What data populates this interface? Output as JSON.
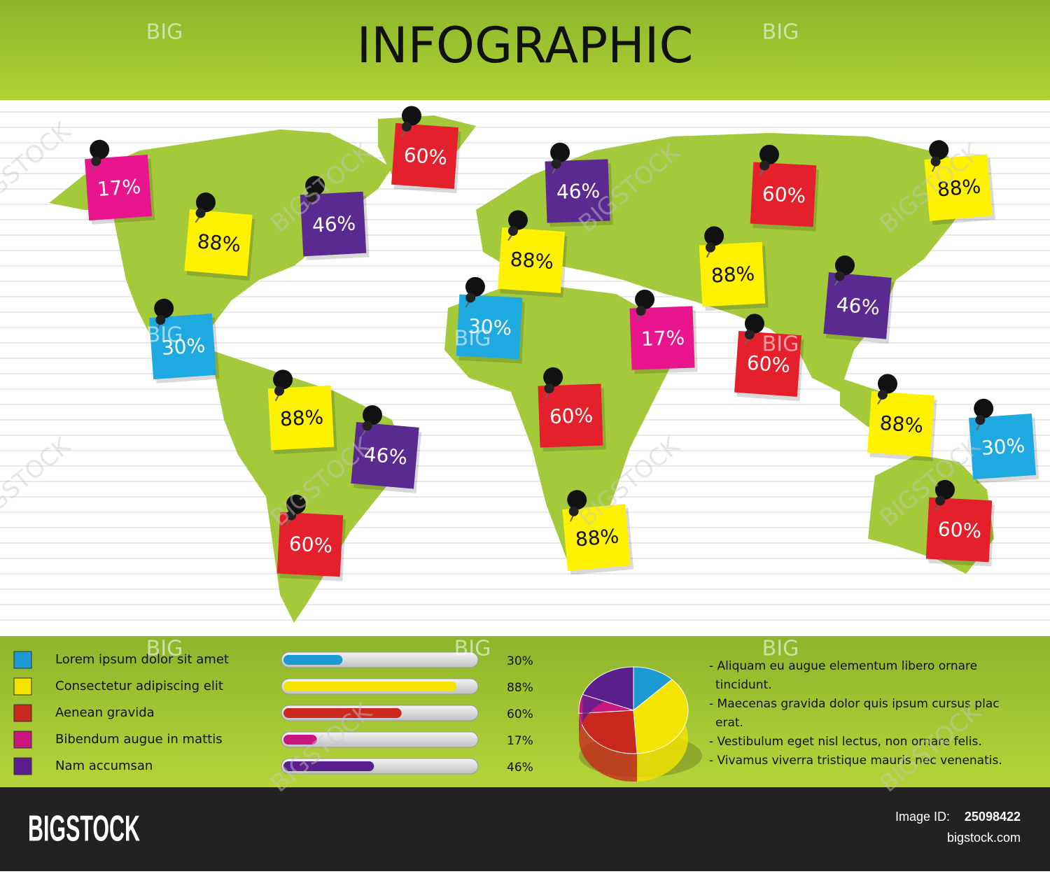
{
  "header": {
    "title": "INFOGRAPHIC"
  },
  "watermark": {
    "short": "BIG",
    "long": "BIGSTOCK"
  },
  "notes": [
    {
      "text": "17%",
      "color": "#e8158f"
    },
    {
      "text": "88%",
      "color": "#fff200"
    },
    {
      "text": "46%",
      "color": "#5b2a91"
    },
    {
      "text": "60%",
      "color": "#e3202b"
    },
    {
      "text": "46%",
      "color": "#5b2a91"
    },
    {
      "text": "60%",
      "color": "#e3202b"
    },
    {
      "text": "88%",
      "color": "#fff200"
    },
    {
      "text": "88%",
      "color": "#fff200"
    },
    {
      "text": "88%",
      "color": "#fff200"
    },
    {
      "text": "46%",
      "color": "#5b2a91"
    },
    {
      "text": "30%",
      "color": "#1fa9e1"
    },
    {
      "text": "30%",
      "color": "#1fa9e1"
    },
    {
      "text": "17%",
      "color": "#e8158f"
    },
    {
      "text": "60%",
      "color": "#e3202b"
    },
    {
      "text": "88%",
      "color": "#fff200"
    },
    {
      "text": "46%",
      "color": "#5b2a91"
    },
    {
      "text": "60%",
      "color": "#e3202b"
    },
    {
      "text": "88%",
      "color": "#fff200"
    },
    {
      "text": "30%",
      "color": "#1fa9e1"
    },
    {
      "text": "60%",
      "color": "#e3202b"
    },
    {
      "text": "88%",
      "color": "#fff200"
    },
    {
      "text": "60%",
      "color": "#e3202b"
    }
  ],
  "legend": {
    "items": [
      {
        "name": "Lorem ipsum dolor sit amet",
        "value": 30,
        "label": "30%",
        "color": "#1c9ad2"
      },
      {
        "name": "Consectetur adipiscing elit",
        "value": 88,
        "label": "88%",
        "color": "#f5e400"
      },
      {
        "name": "Aenean gravida",
        "value": 60,
        "label": "60%",
        "color": "#c8281e"
      },
      {
        "name": "Bibendum augue in mattis",
        "value": 17,
        "label": "17%",
        "color": "#c8167d"
      },
      {
        "name": "Nam accumsan",
        "value": 46,
        "label": "46%",
        "color": "#5a1f8c"
      }
    ]
  },
  "bullets": [
    [
      "- Aliquam eu augue elementum libero ornare",
      "tincidunt."
    ],
    [
      "- Maecenas gravida dolor quis ipsum cursus plac",
      "erat."
    ],
    [
      "- Vestibulum eget nisl lectus, non ornare felis."
    ],
    [
      "- Vivamus viverra tristique mauris nec venenatis."
    ]
  ],
  "footer": {
    "brand": "BIGSTOCK",
    "image_id_label": "Image ID:",
    "image_id": "25098422",
    "site": "bigstock.com"
  }
}
